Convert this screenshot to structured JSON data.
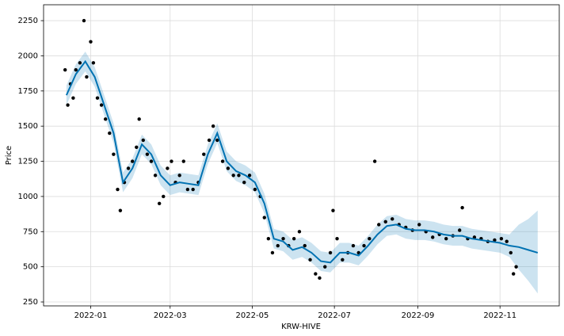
{
  "chart_data": {
    "type": "forecast",
    "x_label": "KRW-HIVE",
    "y_label": "Price",
    "ylim": [
      222,
      2363
    ],
    "yticks": [
      250,
      500,
      750,
      1000,
      1250,
      1500,
      1750,
      2000,
      2250
    ],
    "xlim": [
      "2021-11-27",
      "2022-12-15"
    ],
    "xticks": [
      {
        "value": "2022-01-01",
        "label": "2022-01"
      },
      {
        "value": "2022-03-01",
        "label": "2022-03"
      },
      {
        "value": "2022-05-01",
        "label": "2022-05"
      },
      {
        "value": "2022-07-01",
        "label": "2022-07"
      },
      {
        "value": "2022-09-01",
        "label": "2022-09"
      },
      {
        "value": "2022-11-01",
        "label": "2022-11"
      }
    ],
    "grid": true,
    "observed": {
      "color": "#000000",
      "x": [
        "2021-12-13",
        "2021-12-15",
        "2021-12-17",
        "2021-12-19",
        "2021-12-21",
        "2021-12-24",
        "2021-12-27",
        "2021-12-29",
        "2022-01-01",
        "2022-01-03",
        "2022-01-06",
        "2022-01-09",
        "2022-01-12",
        "2022-01-15",
        "2022-01-18",
        "2022-01-21",
        "2022-01-23",
        "2022-01-26",
        "2022-01-29",
        "2022-02-01",
        "2022-02-04",
        "2022-02-06",
        "2022-02-09",
        "2022-02-12",
        "2022-02-15",
        "2022-02-18",
        "2022-02-21",
        "2022-02-24",
        "2022-02-27",
        "2022-03-02",
        "2022-03-05",
        "2022-03-08",
        "2022-03-11",
        "2022-03-14",
        "2022-03-18",
        "2022-03-22",
        "2022-03-26",
        "2022-03-30",
        "2022-04-02",
        "2022-04-05",
        "2022-04-09",
        "2022-04-13",
        "2022-04-17",
        "2022-04-21",
        "2022-04-25",
        "2022-04-29",
        "2022-05-03",
        "2022-05-07",
        "2022-05-10",
        "2022-05-13",
        "2022-05-16",
        "2022-05-20",
        "2022-05-24",
        "2022-05-28",
        "2022-06-01",
        "2022-06-05",
        "2022-06-09",
        "2022-06-13",
        "2022-06-17",
        "2022-06-20",
        "2022-06-24",
        "2022-06-28",
        "2022-06-30",
        "2022-07-03",
        "2022-07-07",
        "2022-07-11",
        "2022-07-15",
        "2022-07-19",
        "2022-07-23",
        "2022-07-27",
        "2022-07-31",
        "2022-08-03",
        "2022-08-08",
        "2022-08-13",
        "2022-08-18",
        "2022-08-23",
        "2022-08-28",
        "2022-09-02",
        "2022-09-07",
        "2022-09-12",
        "2022-09-17",
        "2022-09-22",
        "2022-09-27",
        "2022-10-02",
        "2022-10-04",
        "2022-10-08",
        "2022-10-13",
        "2022-10-18",
        "2022-10-23",
        "2022-10-28",
        "2022-11-02",
        "2022-11-06",
        "2022-11-09",
        "2022-11-11",
        "2022-11-13"
      ],
      "values": [
        1900,
        1650,
        1800,
        1700,
        1900,
        1950,
        2250,
        1850,
        2100,
        1950,
        1700,
        1650,
        1550,
        1450,
        1300,
        1050,
        900,
        1100,
        1200,
        1250,
        1350,
        1550,
        1400,
        1300,
        1250,
        1150,
        950,
        1000,
        1200,
        1250,
        1100,
        1150,
        1250,
        1050,
        1050,
        1100,
        1300,
        1400,
        1500,
        1400,
        1250,
        1200,
        1150,
        1150,
        1100,
        1150,
        1050,
        1000,
        850,
        700,
        600,
        650,
        700,
        650,
        700,
        750,
        650,
        550,
        450,
        420,
        500,
        600,
        900,
        700,
        550,
        600,
        650,
        600,
        650,
        700,
        1250,
        800,
        820,
        840,
        800,
        780,
        760,
        800,
        750,
        710,
        730,
        700,
        720,
        760,
        920,
        700,
        710,
        700,
        680,
        690,
        700,
        680,
        600,
        450,
        500
      ]
    },
    "forecast": {
      "color": "#0072B2",
      "x": [
        "2021-12-14",
        "2021-12-21",
        "2021-12-28",
        "2022-01-04",
        "2022-01-11",
        "2022-01-18",
        "2022-01-25",
        "2022-02-01",
        "2022-02-08",
        "2022-02-15",
        "2022-02-22",
        "2022-03-01",
        "2022-03-08",
        "2022-03-15",
        "2022-03-22",
        "2022-03-29",
        "2022-04-05",
        "2022-04-12",
        "2022-04-19",
        "2022-04-26",
        "2022-05-03",
        "2022-05-10",
        "2022-05-17",
        "2022-05-24",
        "2022-05-31",
        "2022-06-07",
        "2022-06-14",
        "2022-06-21",
        "2022-06-28",
        "2022-07-05",
        "2022-07-12",
        "2022-07-19",
        "2022-07-26",
        "2022-08-02",
        "2022-08-09",
        "2022-08-16",
        "2022-08-23",
        "2022-08-30",
        "2022-09-06",
        "2022-09-13",
        "2022-09-20",
        "2022-09-27",
        "2022-10-04",
        "2022-10-11",
        "2022-10-18",
        "2022-10-25",
        "2022-11-01",
        "2022-11-08",
        "2022-11-15",
        "2022-11-22",
        "2022-11-29"
      ],
      "values": [
        1720,
        1870,
        1960,
        1850,
        1650,
        1450,
        1100,
        1200,
        1370,
        1300,
        1150,
        1080,
        1100,
        1090,
        1080,
        1300,
        1450,
        1250,
        1180,
        1150,
        1100,
        950,
        700,
        680,
        620,
        640,
        600,
        540,
        530,
        600,
        600,
        580,
        650,
        730,
        790,
        800,
        770,
        760,
        760,
        750,
        730,
        720,
        720,
        700,
        690,
        680,
        670,
        650,
        640,
        620,
        600
      ],
      "lower": [
        1650,
        1800,
        1890,
        1780,
        1580,
        1380,
        1030,
        1130,
        1300,
        1230,
        1080,
        1010,
        1030,
        1020,
        1010,
        1230,
        1380,
        1180,
        1110,
        1080,
        1030,
        880,
        630,
        610,
        550,
        570,
        530,
        470,
        460,
        530,
        530,
        510,
        580,
        660,
        720,
        730,
        700,
        690,
        690,
        680,
        660,
        650,
        650,
        630,
        620,
        610,
        600,
        570,
        480,
        400,
        310
      ],
      "upper": [
        1790,
        1940,
        2030,
        1920,
        1720,
        1520,
        1170,
        1270,
        1440,
        1370,
        1220,
        1150,
        1170,
        1160,
        1150,
        1370,
        1520,
        1320,
        1250,
        1220,
        1170,
        1020,
        770,
        750,
        690,
        710,
        670,
        610,
        600,
        670,
        670,
        650,
        720,
        800,
        860,
        870,
        840,
        830,
        830,
        820,
        800,
        790,
        790,
        770,
        760,
        750,
        740,
        730,
        800,
        840,
        900
      ]
    }
  }
}
